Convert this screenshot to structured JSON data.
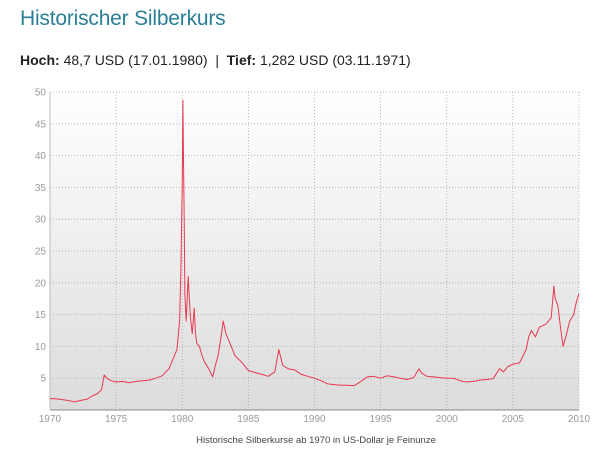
{
  "title": "Historischer Silberkurs",
  "stats": {
    "high_label": "Hoch:",
    "high_value": "48,7 USD (17.01.1980)",
    "separator": "|",
    "low_label": "Tief:",
    "low_value": "1,282 USD (03.11.1971)"
  },
  "colors": {
    "title": "#2a7f96",
    "line": "#e8384f",
    "grid": "#a9a9a9"
  },
  "chart_data": {
    "type": "line",
    "title": "",
    "caption": "Historische Silberkurse ab 1970 in US-Dollar je Feinunze",
    "xlabel": "",
    "ylabel": "",
    "xlim": [
      1970,
      2010
    ],
    "ylim": [
      0,
      50
    ],
    "xticks": [
      "1970",
      "1975",
      "1980",
      "1985",
      "1990",
      "1995",
      "2000",
      "2005",
      "2010"
    ],
    "yticks": [
      "5",
      "10",
      "15",
      "20",
      "25",
      "30",
      "35",
      "40",
      "45",
      "50"
    ],
    "grid": true,
    "series": [
      {
        "x": [
          1970.0,
          1970.5,
          1971.0,
          1971.5,
          1971.84,
          1972.3,
          1972.8,
          1973.2,
          1973.6,
          1973.9,
          1974.1,
          1974.3,
          1974.6,
          1975.0,
          1975.5,
          1976.0,
          1976.5,
          1977.0,
          1977.5,
          1978.0,
          1978.5,
          1979.0,
          1979.3,
          1979.6,
          1979.8,
          1979.9,
          1980.0,
          1980.05,
          1980.1,
          1980.15,
          1980.2,
          1980.3,
          1980.45,
          1980.6,
          1980.75,
          1980.9,
          1981.0,
          1981.1,
          1981.3,
          1981.5,
          1981.7,
          1982.0,
          1982.3,
          1982.5,
          1982.7,
          1982.9,
          1983.1,
          1983.3,
          1983.6,
          1984.0,
          1984.5,
          1985.0,
          1985.5,
          1986.0,
          1986.5,
          1987.0,
          1987.3,
          1987.6,
          1988.0,
          1988.5,
          1989.0,
          1989.5,
          1990.0,
          1990.5,
          1991.0,
          1991.5,
          1992.0,
          1992.5,
          1993.0,
          1993.5,
          1994.0,
          1994.5,
          1995.0,
          1995.5,
          1996.0,
          1996.5,
          1997.0,
          1997.5,
          1997.9,
          1998.1,
          1998.5,
          1999.0,
          1999.5,
          2000.0,
          2000.5,
          2001.0,
          2001.5,
          2002.0,
          2002.5,
          2003.0,
          2003.5,
          2004.0,
          2004.3,
          2004.6,
          2005.0,
          2005.5,
          2006.0,
          2006.2,
          2006.4,
          2006.7,
          2007.0,
          2007.5,
          2007.9,
          2008.1,
          2008.2,
          2008.4,
          2008.6,
          2008.8,
          2009.0,
          2009.3,
          2009.6,
          2009.8,
          2010.0
        ],
        "y": [
          1.8,
          1.75,
          1.6,
          1.45,
          1.28,
          1.5,
          1.7,
          2.2,
          2.6,
          3.2,
          5.5,
          5.0,
          4.6,
          4.4,
          4.5,
          4.3,
          4.5,
          4.6,
          4.7,
          5.0,
          5.4,
          6.5,
          8.0,
          9.5,
          14.0,
          22.0,
          36.0,
          48.7,
          38.0,
          30.0,
          18.0,
          14.0,
          21.0,
          15.0,
          12.0,
          16.0,
          12.0,
          10.5,
          10.0,
          8.5,
          7.5,
          6.5,
          5.2,
          7.0,
          8.5,
          11.0,
          14.0,
          12.0,
          10.5,
          8.5,
          7.5,
          6.2,
          5.9,
          5.6,
          5.3,
          6.0,
          9.5,
          7.0,
          6.5,
          6.3,
          5.6,
          5.3,
          5.0,
          4.6,
          4.1,
          4.0,
          3.9,
          3.9,
          3.8,
          4.5,
          5.2,
          5.3,
          5.0,
          5.4,
          5.2,
          5.0,
          4.8,
          5.1,
          6.5,
          5.8,
          5.3,
          5.2,
          5.1,
          5.0,
          5.0,
          4.6,
          4.4,
          4.5,
          4.7,
          4.8,
          4.9,
          6.5,
          6.0,
          6.8,
          7.2,
          7.4,
          9.5,
          11.5,
          12.5,
          11.5,
          13.0,
          13.5,
          14.5,
          19.5,
          17.5,
          16.5,
          13.0,
          10.0,
          11.5,
          14.0,
          15.0,
          17.0,
          18.3
        ]
      }
    ]
  }
}
